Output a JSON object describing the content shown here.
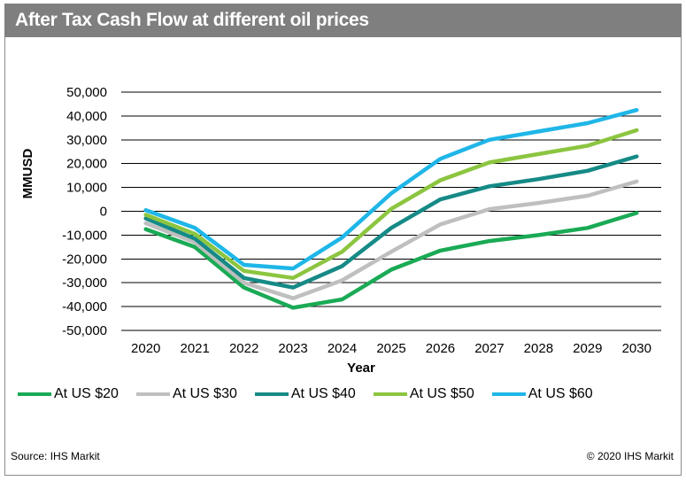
{
  "title": "After Tax Cash Flow at different oil prices",
  "source": "Source: IHS Markit",
  "copyright": "© 2020 IHS Markit",
  "colors": {
    "header_bg": "#7f7f7f",
    "gridline": "#000000"
  },
  "chart_data": {
    "type": "line",
    "title": "After Tax Cash Flow at different oil prices",
    "xlabel": "Year",
    "ylabel": "MMUSD",
    "x": [
      "2020",
      "2021",
      "2022",
      "2023",
      "2024",
      "2025",
      "2026",
      "2027",
      "2028",
      "2029",
      "2030"
    ],
    "ylim": [
      -50000,
      50000
    ],
    "yticks": [
      50000,
      40000,
      30000,
      20000,
      10000,
      0,
      -10000,
      -20000,
      -30000,
      -40000,
      -50000
    ],
    "ytick_labels": [
      "50,000",
      "40,000",
      "30,000",
      "20,000",
      "10,000",
      "0",
      "-10,000",
      "-20,000",
      "-30,000",
      "-40,000",
      "-50,000"
    ],
    "grid": true,
    "legend_position": "bottom",
    "series": [
      {
        "name": "At US $20",
        "color": "#1aaa55",
        "values": [
          -7500,
          -15000,
          -32000,
          -40500,
          -37000,
          -24500,
          -16500,
          -12500,
          -10000,
          -7000,
          -700
        ]
      },
      {
        "name": "At US $30",
        "color": "#bfbfbf",
        "values": [
          -5000,
          -13000,
          -30000,
          -36500,
          -29000,
          -17000,
          -5500,
          900,
          3500,
          6500,
          12500
        ]
      },
      {
        "name": "At US $40",
        "color": "#158a86",
        "values": [
          -3000,
          -11500,
          -28000,
          -32000,
          -23000,
          -7000,
          5000,
          10500,
          13500,
          17000,
          23000
        ]
      },
      {
        "name": "At US $50",
        "color": "#8cc540",
        "values": [
          -1500,
          -9500,
          -25000,
          -28000,
          -17000,
          1000,
          13000,
          20500,
          24000,
          27500,
          34000
        ]
      },
      {
        "name": "At US $60",
        "color": "#1fb6e8",
        "values": [
          500,
          -7000,
          -22500,
          -24000,
          -11000,
          7500,
          22000,
          30000,
          33500,
          37000,
          42500
        ]
      }
    ]
  }
}
